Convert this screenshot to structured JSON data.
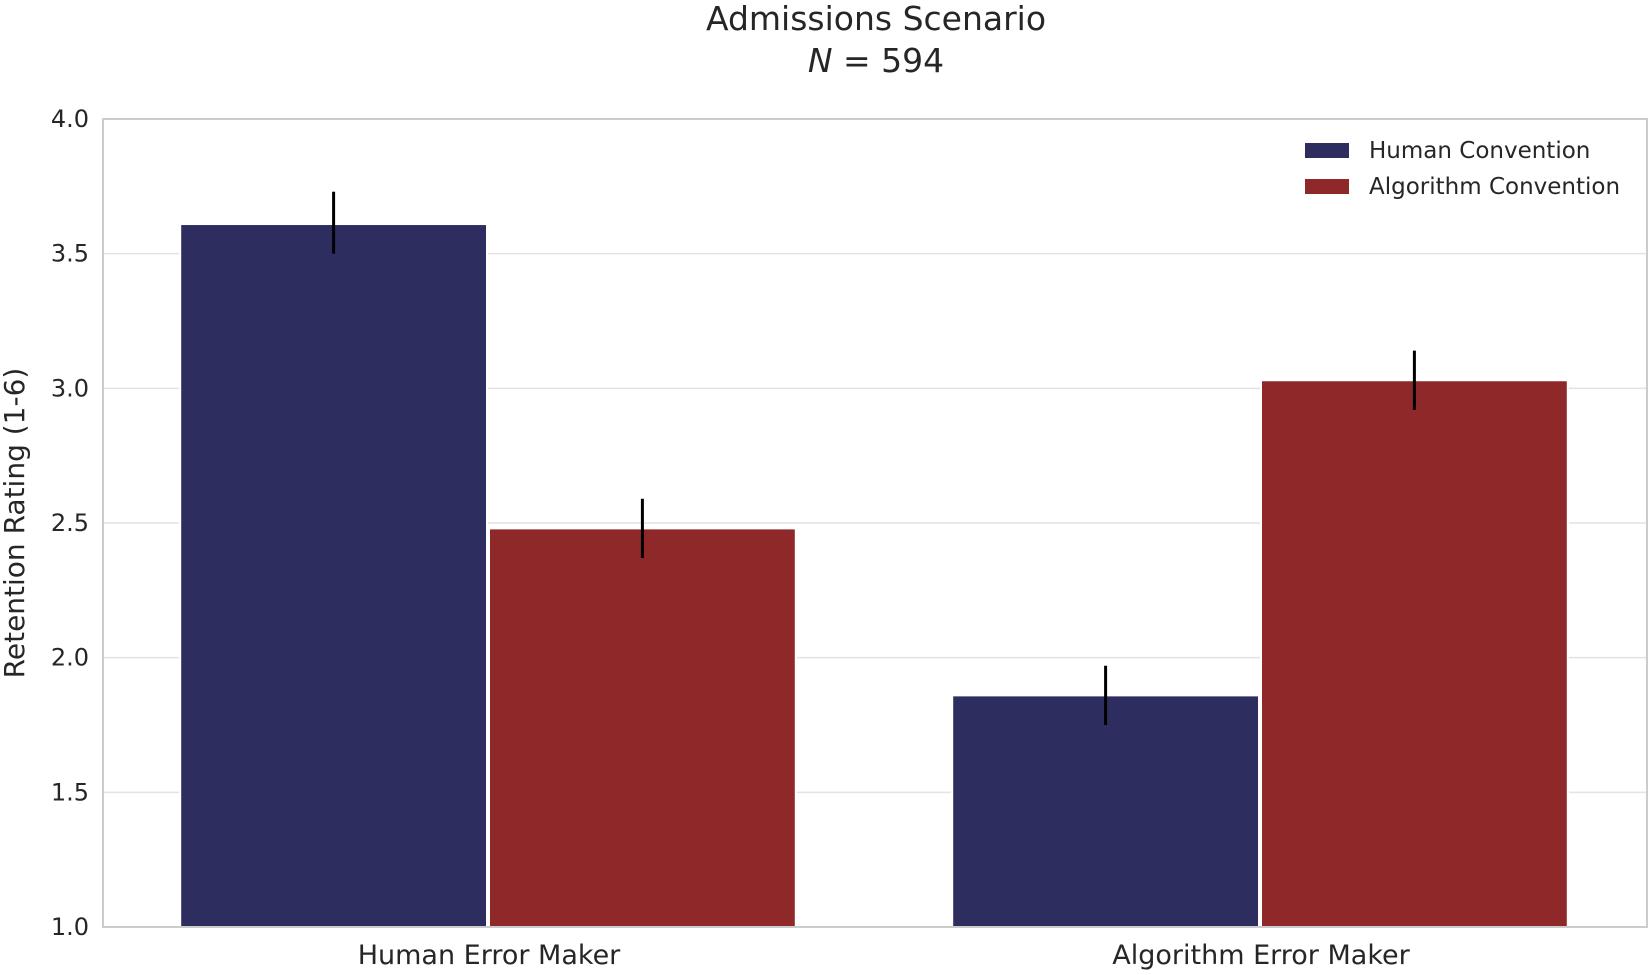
{
  "chart_data": {
    "type": "bar",
    "title": "Admissions Scenario",
    "subtitle": "N = 594",
    "subtitle_parts": {
      "variable": "N",
      "relation": " = ",
      "value": "594"
    },
    "xlabel": "",
    "ylabel": "Retention Rating (1-6)",
    "ylim": [
      1.0,
      4.0
    ],
    "yticks": [
      "1.0",
      "1.5",
      "2.0",
      "2.5",
      "3.0",
      "3.5",
      "4.0"
    ],
    "categories": [
      "Human Error Maker",
      "Algorithm Error Maker"
    ],
    "series": [
      {
        "name": "Human Convention",
        "color": "#2d2e5f",
        "values": [
          3.61,
          1.86
        ],
        "error_low": [
          3.5,
          1.75
        ],
        "error_high": [
          3.73,
          1.97
        ]
      },
      {
        "name": "Algorithm Convention",
        "color": "#8f2828",
        "values": [
          2.48,
          3.03
        ],
        "error_low": [
          2.37,
          2.92
        ],
        "error_high": [
          2.59,
          3.14
        ]
      }
    ],
    "grid": true,
    "legend_position": "top-right"
  }
}
